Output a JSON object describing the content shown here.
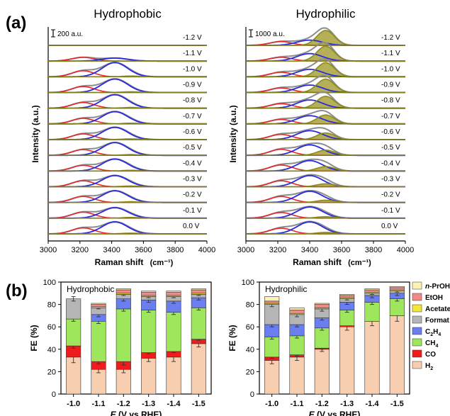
{
  "panel_labels": {
    "a": "(a)",
    "b": "(b)"
  },
  "chart_data": [
    {
      "type": "line",
      "panel": "a",
      "title": "Hydrophobic",
      "scale_label": "200 a.u.",
      "xlabel": "Raman shift",
      "xunit": "(cm⁻¹)",
      "ylabel": "Intensity (a.u.)",
      "xlim": [
        3000,
        4000
      ],
      "xticks": [
        3000,
        3200,
        3400,
        3600,
        3800,
        4000
      ],
      "potentials": [
        "-1.2 V",
        "-1.1 V",
        "-1.0 V",
        "-0.9 V",
        "-0.8 V",
        "-0.7 V",
        "-0.6 V",
        "-0.5 V",
        "-0.4 V",
        "-0.3 V",
        "-0.2 V",
        "-0.1 V",
        "0.0 V"
      ],
      "peak_centers": {
        "red": 3220,
        "blue": 3420,
        "olive": 3520
      },
      "peak_amplitudes": {
        "red": [
          0,
          0.25,
          0.4,
          0.4,
          0.38,
          0.37,
          0.38,
          0.38,
          0.38,
          0.4,
          0.4,
          0.4,
          0.4
        ],
        "blue": [
          0,
          0.2,
          0.95,
          0.9,
          0.9,
          0.82,
          0.82,
          0.85,
          0.8,
          0.75,
          0.78,
          0.7,
          0.8
        ],
        "olive": [
          0,
          0.0,
          0.05,
          0.05,
          0.05,
          0.05,
          0.05,
          0.05,
          0.05,
          0.05,
          0.05,
          0.05,
          0.05
        ]
      }
    },
    {
      "type": "line",
      "panel": "a",
      "title": "Hydrophilic",
      "scale_label": "1000 a.u.",
      "xlabel": "Raman shift",
      "xunit": "(cm⁻¹)",
      "ylabel": "Intensity (a.u.)",
      "xlim": [
        3000,
        4000
      ],
      "xticks": [
        3000,
        3200,
        3400,
        3600,
        3800,
        4000
      ],
      "potentials": [
        "-1.2 V",
        "-1.1 V",
        "-1.0 V",
        "-0.9 V",
        "-0.8 V",
        "-0.7 V",
        "-0.6 V",
        "-0.5 V",
        "-0.4 V",
        "-0.3 V",
        "-0.2 V",
        "-0.1 V",
        "0.0 V"
      ],
      "peak_centers": {
        "red": 3220,
        "blue": 3400,
        "olive": 3500
      },
      "peak_amplitudes": {
        "red": [
          0.25,
          0.25,
          0.3,
          0.3,
          0.3,
          0.3,
          0.35,
          0.4,
          0.4,
          0.4,
          0.4,
          0.38,
          0.38
        ],
        "blue": [
          0.35,
          0.5,
          0.5,
          0.5,
          0.55,
          0.55,
          0.6,
          0.7,
          0.7,
          0.75,
          0.75,
          0.75,
          0.8
        ],
        "olive": [
          1.0,
          1.0,
          0.95,
          0.9,
          0.8,
          0.6,
          0.45,
          0.35,
          0.3,
          0.2,
          0.15,
          0.1,
          0.1
        ]
      }
    },
    {
      "type": "bar",
      "panel": "b",
      "title": "Hydrophobic",
      "xlabel_italic": "E",
      "xlabel": "(V vs RHE)",
      "ylabel": "FE (%)",
      "ylim": [
        0,
        100
      ],
      "yticks": [
        0,
        20,
        40,
        60,
        80,
        100
      ],
      "categories": [
        "-1.0",
        "-1.1",
        "-1.2",
        "-1.3",
        "-1.4",
        "-1.5"
      ],
      "series": [
        {
          "name": "H2",
          "values": [
            33,
            22,
            22,
            32,
            33,
            45
          ],
          "errors": [
            5,
            3,
            3,
            3,
            4,
            3
          ]
        },
        {
          "name": "CO",
          "values": [
            10,
            7,
            7,
            5,
            5,
            4
          ],
          "errors": [
            2,
            2,
            3,
            1,
            1,
            1
          ]
        },
        {
          "name": "CH4",
          "values": [
            24,
            36,
            47,
            38,
            35,
            28
          ],
          "errors": [
            2,
            2,
            2,
            2,
            2,
            2
          ]
        },
        {
          "name": "C2H4",
          "values": [
            0,
            6,
            9,
            9,
            10,
            9
          ],
          "errors": [
            0,
            2,
            2,
            2,
            2,
            2
          ]
        },
        {
          "name": "Formate",
          "values": [
            18,
            6,
            4,
            3,
            4,
            3
          ],
          "errors": [
            2,
            1,
            1,
            1,
            1,
            1
          ]
        },
        {
          "name": "Acetate",
          "values": [
            0,
            1,
            1,
            1,
            1,
            1
          ],
          "errors": [
            0,
            0,
            0,
            0,
            0,
            0
          ]
        },
        {
          "name": "EtOH",
          "values": [
            0,
            2,
            3,
            3,
            3,
            3
          ],
          "errors": [
            0,
            0,
            0,
            0,
            0,
            0
          ]
        },
        {
          "name": "n-PrOH",
          "values": [
            0,
            1,
            1,
            1,
            1,
            1
          ],
          "errors": [
            0,
            0,
            0,
            0,
            0,
            0
          ]
        }
      ]
    },
    {
      "type": "bar",
      "panel": "b",
      "title": "Hydrophilic",
      "xlabel_italic": "E",
      "xlabel": "(V vs RHE)",
      "ylabel": "FE (%)",
      "ylim": [
        0,
        100
      ],
      "yticks": [
        0,
        20,
        40,
        60,
        80,
        100
      ],
      "categories": [
        "-1.0",
        "-1.1",
        "-1.2",
        "-1.3",
        "-1.4",
        "-1.5"
      ],
      "series": [
        {
          "name": "H2",
          "values": [
            30,
            33,
            40,
            60,
            65,
            70
          ],
          "errors": [
            3,
            3,
            2,
            3,
            4,
            5
          ]
        },
        {
          "name": "CO",
          "values": [
            3,
            2,
            1,
            1,
            0,
            0
          ],
          "errors": [
            1,
            1,
            1,
            0,
            0,
            0
          ]
        },
        {
          "name": "CH4",
          "values": [
            18,
            17,
            18,
            14,
            17,
            15
          ],
          "errors": [
            2,
            2,
            2,
            2,
            2,
            2
          ]
        },
        {
          "name": "C2H4",
          "values": [
            11,
            10,
            9,
            7,
            6,
            5
          ],
          "errors": [
            2,
            2,
            2,
            2,
            2,
            2
          ]
        },
        {
          "name": "Formate",
          "values": [
            18,
            9,
            8,
            3,
            2,
            2
          ],
          "errors": [
            2,
            2,
            2,
            1,
            1,
            1
          ]
        },
        {
          "name": "Acetate",
          "values": [
            1,
            1,
            1,
            1,
            1,
            1
          ],
          "errors": [
            0,
            0,
            0,
            0,
            0,
            0
          ]
        },
        {
          "name": "EtOH",
          "values": [
            2,
            3,
            3,
            2,
            2,
            2
          ],
          "errors": [
            0,
            0,
            0,
            0,
            0,
            0
          ]
        },
        {
          "name": "n-PrOH",
          "values": [
            4,
            2,
            1,
            1,
            1,
            1
          ],
          "errors": [
            0,
            0,
            0,
            0,
            0,
            0
          ]
        }
      ]
    }
  ],
  "legend": [
    {
      "key": "n-PrOH",
      "label": "n-PrOH",
      "italic_prefix": "n",
      "rest": "-PrOH",
      "color": "#fdf2b4"
    },
    {
      "key": "EtOH",
      "label": "EtOH",
      "color": "#f08a8a"
    },
    {
      "key": "Acetate",
      "label": "Acetate",
      "color": "#f2e63a"
    },
    {
      "key": "Formate",
      "label": "Format",
      "color": "#b5b5b5"
    },
    {
      "key": "C2H4",
      "label": "C2H4",
      "base": "C",
      "sub1": "2",
      "mid": "H",
      "sub2": "4",
      "color": "#6a7ef0"
    },
    {
      "key": "CH4",
      "label": "CH4",
      "base": "CH",
      "sub1": "4",
      "color": "#9ee65c"
    },
    {
      "key": "CO",
      "label": "CO",
      "color": "#ee1c1c"
    },
    {
      "key": "H2",
      "label": "H2",
      "base": "H",
      "sub1": "2",
      "color": "#f8ceb0"
    }
  ],
  "colors": {
    "H2": "#f8ceb0",
    "CO": "#ee1c1c",
    "CH4": "#9ee65c",
    "C2H4": "#6a7ef0",
    "Formate": "#b5b5b5",
    "Acetate": "#f2e63a",
    "EtOH": "#f08a8a",
    "n-PrOH": "#fdf2b4",
    "red_peak": "#e8262a",
    "blue_peak": "#2a2ae0",
    "olive_peak": "#8c8c1e",
    "olive_fill": "#a8a23a",
    "envelope": "#8c8c8c"
  }
}
